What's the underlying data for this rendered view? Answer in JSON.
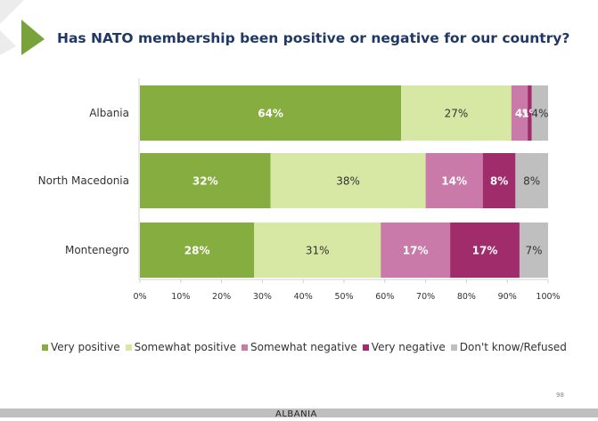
{
  "slide": {
    "title": "Has NATO membership been positive or negative for our country?",
    "page_number": "98",
    "footer": "ALBANIA"
  },
  "colors": {
    "very_positive": "#86ad40",
    "somewhat_positive": "#d7e8a4",
    "somewhat_negative": "#c97aa8",
    "very_negative": "#a02c6c",
    "dont_know": "#bfbfbf",
    "title": "#1f3864",
    "accent_triangle": "#77a33a"
  },
  "chart_data": {
    "type": "bar",
    "orientation": "horizontal",
    "stacked": true,
    "categories": [
      "Albania",
      "North Macedonia",
      "Montenegro"
    ],
    "series": [
      {
        "name": "Very positive",
        "values": [
          64,
          32,
          28
        ]
      },
      {
        "name": "Somewhat positive",
        "values": [
          27,
          38,
          31
        ]
      },
      {
        "name": "Somewhat negative",
        "values": [
          4,
          14,
          17
        ]
      },
      {
        "name": "Very negative",
        "values": [
          1,
          8,
          17
        ]
      },
      {
        "name": "Don't know/Refused",
        "values": [
          4,
          8,
          7
        ]
      }
    ],
    "xlim": [
      0,
      100
    ],
    "xticks": [
      "0%",
      "10%",
      "20%",
      "30%",
      "40%",
      "50%",
      "60%",
      "70%",
      "80%",
      "90%",
      "100%"
    ],
    "value_labels": [
      [
        "64%",
        "27%",
        "4%",
        "1%",
        "4%"
      ],
      [
        "32%",
        "38%",
        "14%",
        "8%",
        "8%"
      ],
      [
        "28%",
        "31%",
        "17%",
        "17%",
        "7%"
      ]
    ],
    "legend_position": "bottom",
    "grid": false
  }
}
